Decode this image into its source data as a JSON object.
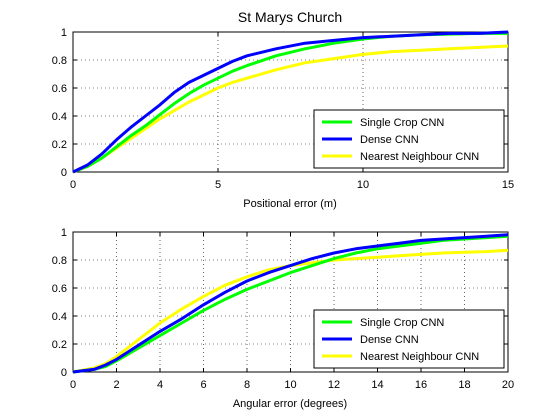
{
  "chart_data": [
    {
      "type": "line",
      "title": "St Marys Church",
      "xlabel": "Positional error (m)",
      "ylabel": "",
      "xlim": [
        0,
        15
      ],
      "ylim": [
        0,
        1
      ],
      "xticks": [
        0,
        5,
        10,
        15
      ],
      "yticks": [
        0,
        0.2,
        0.4,
        0.6,
        0.8,
        1
      ],
      "grid": true,
      "legend_position": "bottom-right",
      "series": [
        {
          "name": "Single Crop CNN",
          "color": "#00ff00",
          "x": [
            0,
            0.5,
            1,
            1.5,
            2,
            2.5,
            3,
            3.5,
            4,
            4.5,
            5,
            5.5,
            6,
            7,
            8,
            9,
            10,
            11,
            12,
            13,
            14,
            15
          ],
          "y": [
            0,
            0.04,
            0.1,
            0.18,
            0.26,
            0.33,
            0.41,
            0.49,
            0.56,
            0.62,
            0.67,
            0.72,
            0.76,
            0.83,
            0.88,
            0.92,
            0.95,
            0.97,
            0.98,
            0.985,
            0.99,
            0.99
          ]
        },
        {
          "name": "Dense CNN",
          "color": "#0000ff",
          "x": [
            0,
            0.5,
            1,
            1.5,
            2,
            2.5,
            3,
            3.5,
            4,
            4.5,
            5,
            5.5,
            6,
            7,
            8,
            9,
            10,
            11,
            12,
            13,
            14,
            15
          ],
          "y": [
            0,
            0.05,
            0.13,
            0.23,
            0.32,
            0.4,
            0.48,
            0.57,
            0.64,
            0.69,
            0.74,
            0.79,
            0.83,
            0.88,
            0.92,
            0.94,
            0.96,
            0.97,
            0.98,
            0.99,
            0.99,
            1.0
          ]
        },
        {
          "name": "Nearest Neighbour CNN",
          "color": "#ffff00",
          "x": [
            0,
            0.5,
            1,
            1.5,
            2,
            2.5,
            3,
            3.5,
            4,
            4.5,
            5,
            5.5,
            6,
            7,
            8,
            9,
            10,
            11,
            12,
            13,
            14,
            15
          ],
          "y": [
            0,
            0.04,
            0.1,
            0.17,
            0.24,
            0.31,
            0.38,
            0.44,
            0.5,
            0.55,
            0.6,
            0.64,
            0.67,
            0.73,
            0.78,
            0.81,
            0.84,
            0.86,
            0.87,
            0.88,
            0.89,
            0.9
          ]
        }
      ]
    },
    {
      "type": "line",
      "title": "",
      "xlabel": "Angular error (degrees)",
      "ylabel": "",
      "xlim": [
        0,
        20
      ],
      "ylim": [
        0,
        1
      ],
      "xticks": [
        0,
        2,
        4,
        6,
        8,
        10,
        12,
        14,
        16,
        18,
        20
      ],
      "yticks": [
        0,
        0.2,
        0.4,
        0.6,
        0.8,
        1
      ],
      "grid": true,
      "legend_position": "bottom-right",
      "series": [
        {
          "name": "Single Crop CNN",
          "color": "#00ff00",
          "x": [
            0,
            1,
            1.5,
            2,
            3,
            4,
            5,
            6,
            7,
            8,
            9,
            10,
            11,
            12,
            13,
            14,
            15,
            16,
            17,
            18,
            19,
            20
          ],
          "y": [
            0,
            0.02,
            0.04,
            0.08,
            0.17,
            0.26,
            0.35,
            0.44,
            0.52,
            0.59,
            0.65,
            0.71,
            0.76,
            0.81,
            0.85,
            0.88,
            0.9,
            0.92,
            0.94,
            0.95,
            0.96,
            0.97
          ]
        },
        {
          "name": "Dense CNN",
          "color": "#0000ff",
          "x": [
            0,
            1,
            1.5,
            2,
            3,
            4,
            5,
            6,
            7,
            8,
            9,
            10,
            11,
            12,
            13,
            14,
            15,
            16,
            17,
            18,
            19,
            20
          ],
          "y": [
            0,
            0.02,
            0.05,
            0.09,
            0.19,
            0.29,
            0.38,
            0.48,
            0.57,
            0.65,
            0.71,
            0.76,
            0.81,
            0.85,
            0.88,
            0.9,
            0.92,
            0.94,
            0.95,
            0.96,
            0.97,
            0.98
          ]
        },
        {
          "name": "Nearest Neighbour CNN",
          "color": "#ffff00",
          "x": [
            0,
            1,
            1.5,
            2,
            3,
            4,
            5,
            6,
            7,
            8,
            9,
            10,
            11,
            12,
            13,
            14,
            15,
            16,
            17,
            18,
            19,
            20
          ],
          "y": [
            0,
            0.03,
            0.06,
            0.11,
            0.23,
            0.35,
            0.45,
            0.54,
            0.62,
            0.68,
            0.73,
            0.76,
            0.78,
            0.8,
            0.81,
            0.82,
            0.83,
            0.84,
            0.85,
            0.855,
            0.86,
            0.87
          ]
        }
      ]
    }
  ]
}
